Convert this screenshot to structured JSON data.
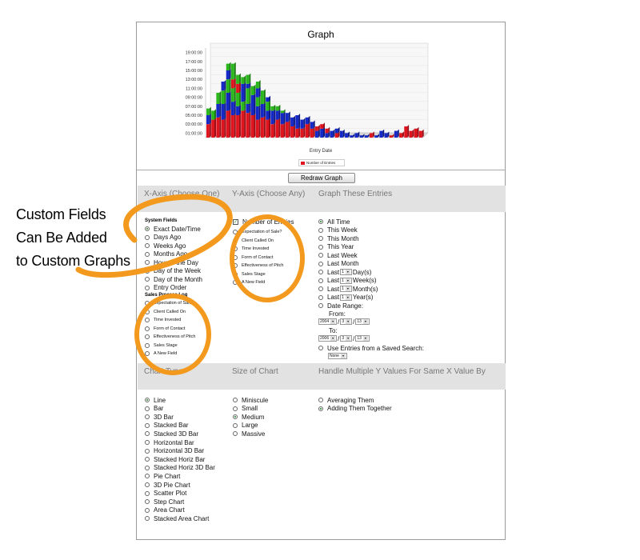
{
  "graph": {
    "title": "Graph",
    "x_axis_title": "Entry Date",
    "legend_label": "Number of Entries",
    "redraw_button": "Redraw Graph"
  },
  "chart_data": {
    "type": "bar",
    "title": "Graph",
    "xlabel": "Entry Date",
    "ylabel": "",
    "y_ticks": [
      "01:00:00",
      "03:00:00",
      "05:00:00",
      "07:00:00",
      "09:00:00",
      "11:00:00",
      "13:00:00",
      "15:00:00",
      "17:00:00",
      "19:00:00"
    ],
    "ylim": [
      0,
      20
    ],
    "grid": true,
    "legend": "bottom-center",
    "series": [
      {
        "name": "Number of Entries",
        "color": "#e0141e"
      }
    ],
    "colors": [
      "#e0141e",
      "#1428c8",
      "#2ab81c"
    ],
    "stacks": [
      [
        [
          3,
          "r"
        ],
        [
          2,
          "b"
        ],
        [
          1.5,
          "g"
        ]
      ],
      [
        [
          4,
          "r"
        ],
        [
          2,
          "g"
        ]
      ],
      [
        [
          4.5,
          "r"
        ],
        [
          3,
          "b"
        ],
        [
          2.5,
          "g"
        ]
      ],
      [
        [
          4,
          "r"
        ],
        [
          3.5,
          "b"
        ],
        [
          3,
          "g"
        ],
        [
          2,
          "b"
        ]
      ],
      [
        [
          6,
          "r"
        ],
        [
          4,
          "b"
        ],
        [
          3,
          "g"
        ],
        [
          2,
          "b"
        ],
        [
          1.5,
          "g"
        ]
      ],
      [
        [
          5,
          "r"
        ],
        [
          3,
          "b"
        ],
        [
          3,
          "g"
        ],
        [
          2,
          "r"
        ],
        [
          3.5,
          "g"
        ]
      ],
      [
        [
          5,
          "r"
        ],
        [
          2,
          "b"
        ],
        [
          3,
          "g"
        ],
        [
          2,
          "r"
        ],
        [
          2,
          "g"
        ]
      ],
      [
        [
          6,
          "r"
        ],
        [
          2,
          "g"
        ],
        [
          4,
          "b"
        ],
        [
          1.5,
          "g"
        ]
      ],
      [
        [
          5.5,
          "r"
        ],
        [
          2,
          "b"
        ],
        [
          3.5,
          "g"
        ],
        [
          1,
          "b"
        ],
        [
          2,
          "g"
        ]
      ],
      [
        [
          5,
          "r"
        ],
        [
          4.5,
          "b"
        ],
        [
          2,
          "g"
        ]
      ],
      [
        [
          4,
          "r"
        ],
        [
          3,
          "b"
        ],
        [
          2,
          "g"
        ],
        [
          2,
          "b"
        ],
        [
          1.5,
          "g"
        ]
      ],
      [
        [
          4.5,
          "r"
        ],
        [
          3,
          "b"
        ],
        [
          3,
          "g"
        ]
      ],
      [
        [
          4,
          "r"
        ],
        [
          2,
          "b"
        ],
        [
          2,
          "g"
        ],
        [
          1,
          "b"
        ]
      ],
      [
        [
          3,
          "r"
        ],
        [
          3,
          "b"
        ],
        [
          1,
          "g"
        ]
      ],
      [
        [
          4,
          "r"
        ],
        [
          2,
          "b"
        ],
        [
          1,
          "g"
        ]
      ],
      [
        [
          3,
          "r"
        ],
        [
          2.5,
          "b"
        ],
        [
          0.5,
          "g"
        ]
      ],
      [
        [
          3.5,
          "r"
        ],
        [
          2,
          "b"
        ]
      ],
      [
        [
          2.5,
          "r"
        ],
        [
          2,
          "b"
        ]
      ],
      [
        [
          2,
          "r"
        ],
        [
          3,
          "b"
        ]
      ],
      [
        [
          2,
          "r"
        ],
        [
          2,
          "b"
        ]
      ],
      [
        [
          3,
          "r"
        ],
        [
          1.5,
          "b"
        ]
      ],
      [
        [
          2,
          "r"
        ],
        [
          1.5,
          "b"
        ]
      ],
      [
        [
          1.5,
          "b"
        ],
        [
          1,
          "r"
        ]
      ],
      [
        [
          2,
          "b"
        ],
        [
          1,
          "r"
        ]
      ],
      [
        [
          1,
          "b"
        ],
        [
          1,
          "r"
        ]
      ],
      [
        [
          1.5,
          "b"
        ]
      ],
      [
        [
          1,
          "r"
        ],
        [
          1,
          "b"
        ]
      ],
      [
        [
          1.5,
          "b"
        ]
      ],
      [
        [
          1,
          "b"
        ]
      ],
      [
        [
          0.5,
          "b"
        ]
      ],
      [
        [
          1,
          "b"
        ]
      ],
      [
        [
          0.5,
          "b"
        ]
      ],
      [
        [
          0.5,
          "b"
        ]
      ],
      [
        [
          1,
          "r"
        ]
      ],
      [
        [
          0.5,
          "b"
        ]
      ],
      [
        [
          1.5,
          "b"
        ]
      ],
      [
        [
          1,
          "b"
        ]
      ],
      [
        [
          0.5,
          "r"
        ]
      ],
      [
        [
          1.5,
          "b"
        ]
      ],
      [
        [
          1,
          "r"
        ]
      ],
      [
        [
          2.5,
          "r"
        ]
      ],
      [
        [
          1.5,
          "r"
        ]
      ],
      [
        [
          2,
          "r"
        ]
      ],
      [
        [
          1.5,
          "r"
        ]
      ]
    ]
  },
  "x_axis": {
    "header": "X-Axis (Choose One)",
    "system_fields_label": "System Fields",
    "options": [
      "Exact Date/Time",
      "Days Ago",
      "Weeks Ago",
      "Months Ago",
      "Hour of the Day",
      "Day of the Week",
      "Day of the Month",
      "Entry Order"
    ],
    "selected": "Exact Date/Time",
    "custom_log_label": "Sales Process Log",
    "custom_options": [
      "Expectation of Sale?",
      "Client Called On",
      "Time Invested",
      "Form of Contact",
      "Effectiveness of Pitch",
      "Sales Stage",
      "A New Field"
    ]
  },
  "y_axis": {
    "header": "Y-Axis (Choose Any)",
    "checkbox_label": "Number of Entries",
    "checkbox_checked": true,
    "options": [
      "Expectation of Sale?",
      "Client Called On",
      "Time Invested",
      "Form of Contact",
      "Effectiveness of Pitch",
      "Sales Stage",
      "A New Field"
    ]
  },
  "entries": {
    "header": "Graph These Entries",
    "options": [
      "All Time",
      "This Week",
      "This Month",
      "This Year",
      "Last Week",
      "Last Month"
    ],
    "selected": "All Time",
    "last_prefix": "Last",
    "last_value": "1",
    "last_units": [
      "Day(s)",
      "Week(s)",
      "Month(s)",
      "Year(s)"
    ],
    "date_range_label": "Date Range:",
    "from_label": "From:",
    "from_date": [
      "2004",
      "3",
      "13"
    ],
    "to_label": "To:",
    "to_date": [
      "2006",
      "3",
      "13"
    ],
    "date_sep": "/",
    "saved_search_label": "Use Entries from a Saved Search:",
    "saved_search_value": "None"
  },
  "chart_type": {
    "header": "Chart Type",
    "options": [
      "Line",
      "Bar",
      "3D Bar",
      "Stacked Bar",
      "Stacked 3D Bar",
      "Horizontal Bar",
      "Horizontal 3D Bar",
      "Stacked Horiz Bar",
      "Stacked Horiz 3D Bar",
      "Pie Chart",
      "3D Pie Chart",
      "Scatter Plot",
      "Step Chart",
      "Area Chart",
      "Stacked Area Chart"
    ],
    "selected": "Line"
  },
  "chart_size": {
    "header": "Size of Chart",
    "options": [
      "Miniscule",
      "Small",
      "Medium",
      "Large",
      "Massive"
    ],
    "selected": "Medium"
  },
  "multi_y": {
    "header": "Handle Multiple Y Values For Same X Value By",
    "options": [
      "Averaging Them",
      "Adding Them Together"
    ],
    "selected": "Adding Them Together"
  },
  "callout": {
    "lines": [
      "Custom Fields",
      "Can Be Added",
      "to Custom Graphs"
    ],
    "color": "#f39a1e"
  }
}
